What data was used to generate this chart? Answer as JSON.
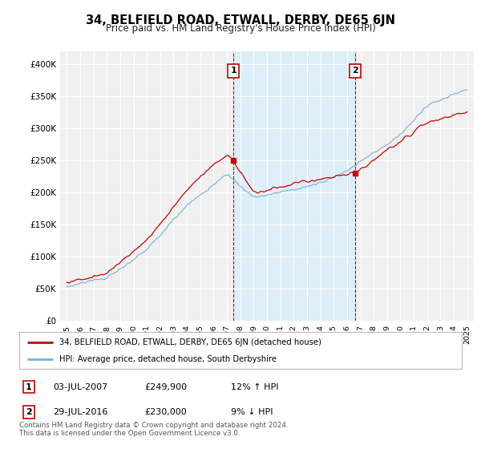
{
  "title": "34, BELFIELD ROAD, ETWALL, DERBY, DE65 6JN",
  "subtitle": "Price paid vs. HM Land Registry's House Price Index (HPI)",
  "ylim": [
    0,
    420000
  ],
  "yticks": [
    0,
    50000,
    100000,
    150000,
    200000,
    250000,
    300000,
    350000,
    400000
  ],
  "ytick_labels": [
    "£0",
    "£50K",
    "£100K",
    "£150K",
    "£200K",
    "£250K",
    "£300K",
    "£350K",
    "£400K"
  ],
  "hpi_color": "#7ab0d4",
  "hpi_fill_color": "#ddeef8",
  "price_color": "#cc0000",
  "sale1_year": 2007.5,
  "sale1_price": 249900,
  "sale2_year": 2016.58,
  "sale2_price": 230000,
  "sale1_date": "03-JUL-2007",
  "sale1_price_str": "£249,900",
  "sale1_pct": "12% ↑ HPI",
  "sale2_date": "29-JUL-2016",
  "sale2_price_str": "£230,000",
  "sale2_pct": "9% ↓ HPI",
  "legend_label1": "34, BELFIELD ROAD, ETWALL, DERBY, DE65 6JN (detached house)",
  "legend_label2": "HPI: Average price, detached house, South Derbyshire",
  "footnote": "Contains HM Land Registry data © Crown copyright and database right 2024.\nThis data is licensed under the Open Government Licence v3.0.",
  "background_color": "#ffffff",
  "plot_bg_color": "#f0f0f0"
}
